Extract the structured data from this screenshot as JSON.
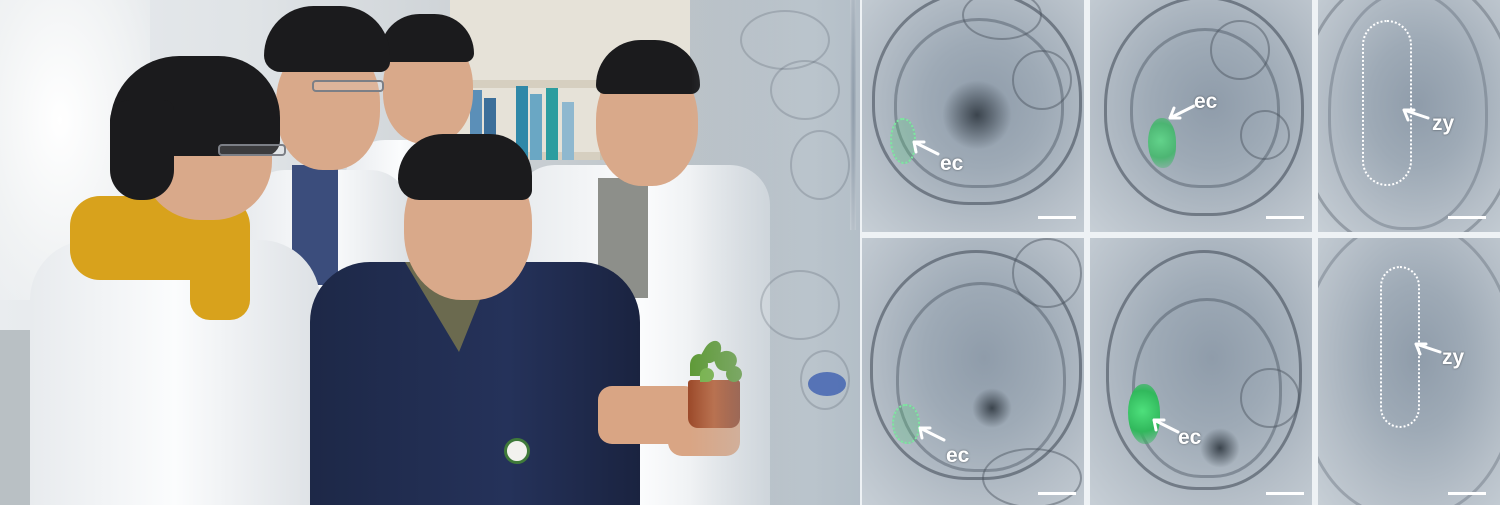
{
  "micrograph_labels": {
    "top_row": [
      "",
      "ec",
      "ec",
      "zy"
    ],
    "bottom_row": [
      "",
      "ec",
      "ec",
      "zy"
    ]
  },
  "colors": {
    "coat_white": "#f5f7f9",
    "jacket_navy": "#1f2a4a",
    "scarf_yellow": "#d8a21c",
    "fluorescence_green": "#3fd06c",
    "micrograph_gray": "#a3aeb9",
    "label_white": "#ffffff"
  },
  "icons": [
    "arrow-icon",
    "scale-bar"
  ]
}
